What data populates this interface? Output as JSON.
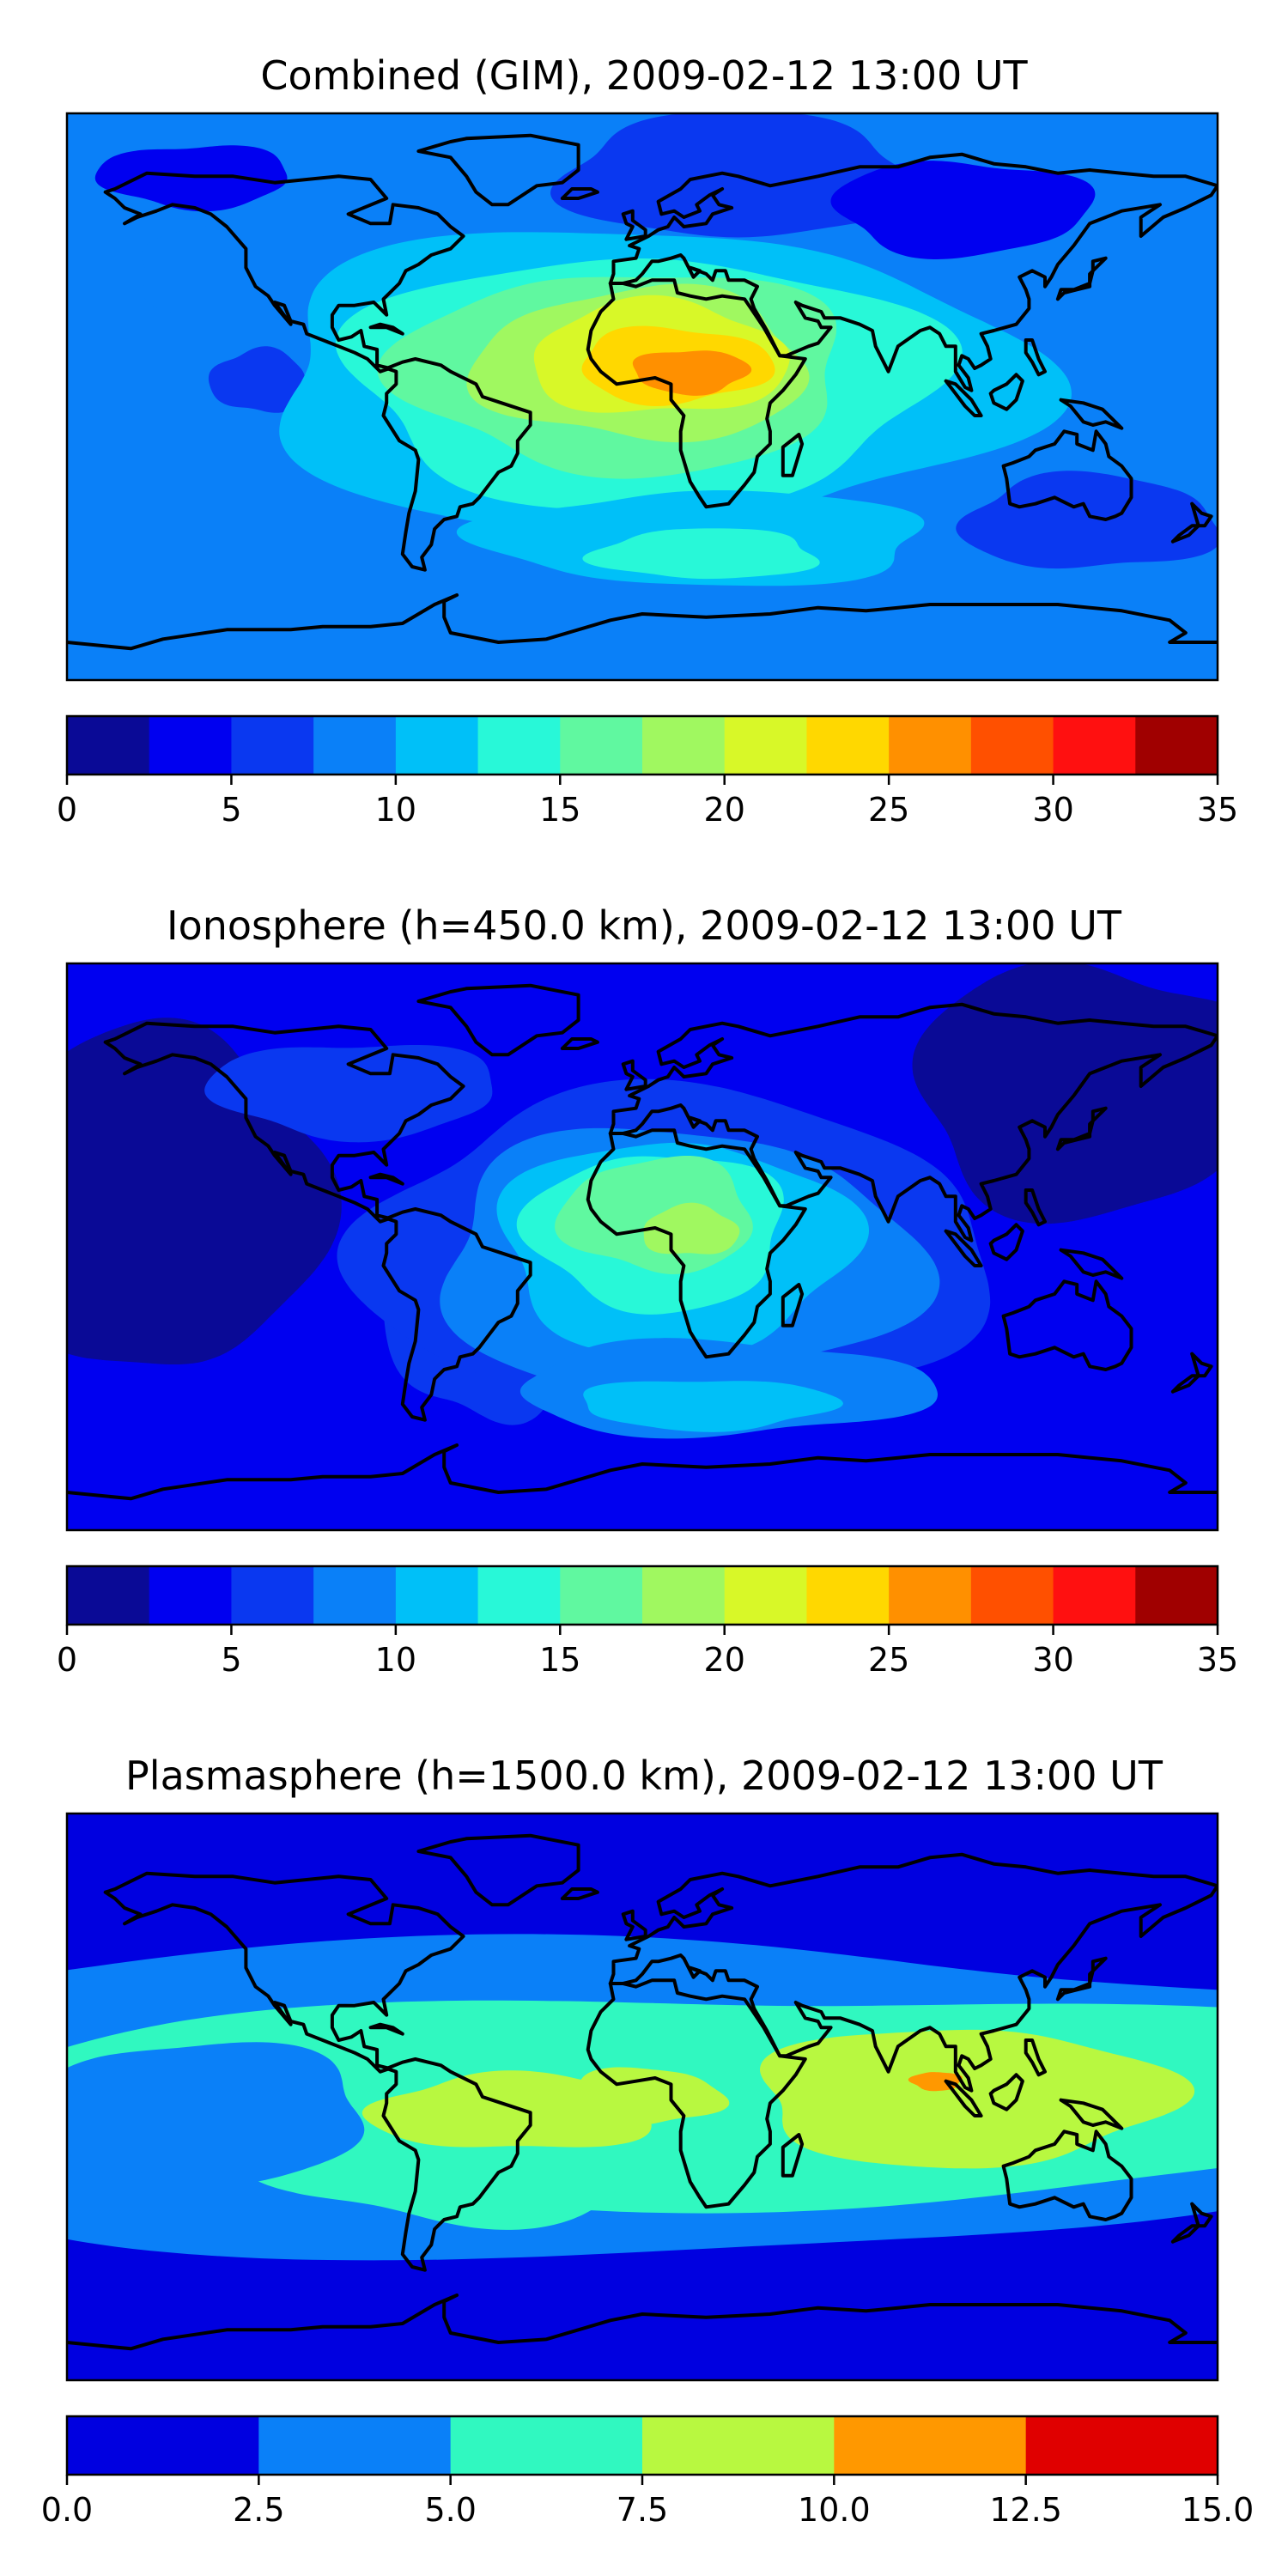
{
  "chart_data": [
    {
      "type": "heatmap",
      "title": "Combined (GIM), 2009-02-12 13:00 UT",
      "colorbar": {
        "ticks": [
          "0",
          "5",
          "10",
          "15",
          "20",
          "25",
          "30",
          "35"
        ],
        "range": [
          0,
          35
        ],
        "bins": [
          0,
          2.5,
          5,
          7.5,
          10,
          12.5,
          15,
          17.5,
          20,
          22.5,
          25,
          27.5,
          30,
          32.5,
          35
        ],
        "colors": [
          "#0a0a96",
          "#0000f0",
          "#0a38f0",
          "#0a80f8",
          "#00c0f8",
          "#28f8d8",
          "#60f8a0",
          "#a0f860",
          "#d8f828",
          "#ffd800",
          "#ff9000",
          "#ff5000",
          "#ff1010",
          "#a00000"
        ]
      },
      "field": {
        "background": 3,
        "features": [
          {
            "lon": 30,
            "lat": 70,
            "rlon": 55,
            "rlat": 20,
            "level": 2
          },
          {
            "lon": -120,
            "lat": 40,
            "rlon": 40,
            "rlat": 15,
            "level": 3
          },
          {
            "lon": 100,
            "lat": 60,
            "rlon": 40,
            "rlat": 15,
            "level": 1
          },
          {
            "lon": -140,
            "lat": 70,
            "rlon": 30,
            "rlat": 10,
            "level": 1
          },
          {
            "lon": -120,
            "lat": 5,
            "rlon": 15,
            "rlat": 10,
            "level": 2
          },
          {
            "lon": 140,
            "lat": -40,
            "rlon": 40,
            "rlat": 15,
            "level": 2
          },
          {
            "lon": 0,
            "lat": 5,
            "rlon": 120,
            "rlat": 48,
            "level": 4
          },
          {
            "lon": 0,
            "lat": 5,
            "rlon": 92,
            "rlat": 40,
            "level": 5
          },
          {
            "lon": -5,
            "lat": 8,
            "rlon": 70,
            "rlat": 32,
            "level": 6
          },
          {
            "lon": 0,
            "lat": 10,
            "rlon": 52,
            "rlat": 24,
            "level": 7
          },
          {
            "lon": 5,
            "lat": 12,
            "rlon": 40,
            "rlat": 18,
            "level": 8
          },
          {
            "lon": 10,
            "lat": 10,
            "rlon": 30,
            "rlat": 12,
            "level": 9
          },
          {
            "lon": 15,
            "lat": 8,
            "rlon": 18,
            "rlat": 7,
            "level": 10
          },
          {
            "lon": 20,
            "lat": -45,
            "rlon": 70,
            "rlat": 15,
            "level": 4
          },
          {
            "lon": 20,
            "lat": -50,
            "rlon": 35,
            "rlat": 8,
            "level": 5
          }
        ]
      }
    },
    {
      "type": "heatmap",
      "title": "Ionosphere  (h=450.0 km), 2009-02-12 13:00 UT",
      "colorbar": {
        "ticks": [
          "0",
          "5",
          "10",
          "15",
          "20",
          "25",
          "30",
          "35"
        ],
        "range": [
          0,
          35
        ],
        "bins": [
          0,
          2.5,
          5,
          7.5,
          10,
          12.5,
          15,
          17.5,
          20,
          22.5,
          25,
          27.5,
          30,
          32.5,
          35
        ],
        "colors": [
          "#0a0a96",
          "#0000f0",
          "#0a38f0",
          "#0a80f8",
          "#00c0f8",
          "#28f8d8",
          "#60f8a0",
          "#a0f860",
          "#d8f828",
          "#ffd800",
          "#ff9000",
          "#ff5000",
          "#ff1010",
          "#a00000"
        ]
      },
      "field": {
        "background": 1,
        "features": [
          {
            "lon": -150,
            "lat": 15,
            "rlon": 50,
            "rlat": 55,
            "level": 0
          },
          {
            "lon": 140,
            "lat": 50,
            "rlon": 55,
            "rlat": 40,
            "level": 0
          },
          {
            "lon": -90,
            "lat": 50,
            "rlon": 45,
            "rlat": 15,
            "level": 2
          },
          {
            "lon": -50,
            "lat": -20,
            "rlon": 30,
            "rlat": 35,
            "level": 2
          },
          {
            "lon": 10,
            "lat": 0,
            "rlon": 100,
            "rlat": 48,
            "level": 2
          },
          {
            "lon": 10,
            "lat": -5,
            "rlon": 75,
            "rlat": 42,
            "level": 3
          },
          {
            "lon": 10,
            "lat": 0,
            "rlon": 55,
            "rlat": 34,
            "level": 4
          },
          {
            "lon": 5,
            "lat": 5,
            "rlon": 40,
            "rlat": 25,
            "level": 5
          },
          {
            "lon": 5,
            "lat": 10,
            "rlon": 30,
            "rlat": 18,
            "level": 6
          },
          {
            "lon": 15,
            "lat": 5,
            "rlon": 15,
            "rlat": 8,
            "level": 7
          },
          {
            "lon": 25,
            "lat": -45,
            "rlon": 65,
            "rlat": 15,
            "level": 3
          },
          {
            "lon": 20,
            "lat": -50,
            "rlon": 40,
            "rlat": 8,
            "level": 4
          }
        ]
      }
    },
    {
      "type": "heatmap",
      "title": "Plasmasphere (h=1500.0 km), 2009-02-12 13:00 UT",
      "colorbar": {
        "ticks": [
          "0.0",
          "2.5",
          "5.0",
          "7.5",
          "10.0",
          "12.5",
          "15.0"
        ],
        "range": [
          0,
          15
        ],
        "bins": [
          0,
          2.5,
          5,
          7.5,
          10,
          12.5,
          15
        ],
        "colors": [
          "#0000e0",
          "#0a80f8",
          "#30f8c0",
          "#b8f840",
          "#ff9800",
          "#e00000"
        ]
      },
      "field": {
        "background": 0,
        "features": [
          {
            "lon": 0,
            "lat": 0,
            "rlon": 280,
            "rlat": 50,
            "level": 1
          },
          {
            "lon": 30,
            "lat": 0,
            "rlon": 230,
            "rlat": 33,
            "level": 2
          },
          {
            "lon": -60,
            "lat": -10,
            "rlon": 70,
            "rlat": 30,
            "level": 2
          },
          {
            "lon": -40,
            "lat": -5,
            "rlon": 45,
            "rlat": 12,
            "level": 3
          },
          {
            "lon": 0,
            "lat": 0,
            "rlon": 25,
            "rlat": 9,
            "level": 3
          },
          {
            "lon": 100,
            "lat": 0,
            "rlon": 65,
            "rlat": 22,
            "level": 3
          },
          {
            "lon": 92,
            "lat": 5,
            "rlon": 8,
            "rlat": 3,
            "level": 4
          },
          {
            "lon": -140,
            "lat": -5,
            "rlon": 55,
            "rlat": 22,
            "level": 1
          }
        ]
      }
    }
  ]
}
